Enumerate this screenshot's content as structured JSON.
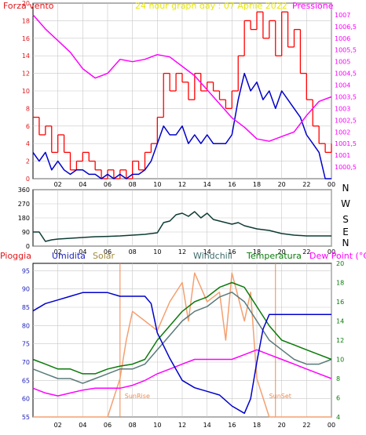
{
  "panel1": {
    "left_title": "Forza vento",
    "center_title": "24 hour graph day : 07 Aprile 2022",
    "right_title": "Pressione",
    "colors": {
      "left": "#e0161b",
      "right": "#ff00ff",
      "center": "#e8e800"
    }
  },
  "panel3": {
    "labels": [
      {
        "text": "Pioggia",
        "color": "#e0161b"
      },
      {
        "text": "Umidita",
        "color": "#1b1fb8"
      },
      {
        "text": "Solar",
        "color": "#a08a40"
      },
      {
        "text": "Windchill",
        "color": "#3a6a6a"
      },
      {
        "text": "Temperatura",
        "color": "#0a7a0a"
      },
      {
        "text": "Dew Point (°C)",
        "color": "#ff00ff"
      }
    ],
    "sunrise_label": "SunRise",
    "sunset_label": "SunSet",
    "sun_color": "#f08a4a"
  },
  "chart_data": [
    {
      "type": "line",
      "title": "24 hour graph day : 07 Aprile 2022",
      "ylabel_left": "Forza vento",
      "ylabel_right": "Pressione",
      "x_ticks": [
        "02",
        "04",
        "06",
        "08",
        "10",
        "12",
        "14",
        "16",
        "18",
        "20",
        "22",
        "00"
      ],
      "y_left_ticks": [
        "0",
        "2",
        "4",
        "6",
        "8",
        "10",
        "12",
        "14",
        "16",
        "18",
        "20"
      ],
      "y_right_ticks": [
        "1000,5",
        "1001",
        "1001,5",
        "1002",
        "1002,5",
        "1003",
        "1003,5",
        "1004",
        "1004,5",
        "1005",
        "1005,5",
        "1006",
        "1006,5",
        "1007"
      ],
      "ylim_left": [
        0,
        20
      ],
      "ylim_right": [
        1000,
        1007.5
      ],
      "series": [
        {
          "name": "Gust",
          "color": "#ff0000",
          "x": [
            0,
            0.5,
            1,
            1.5,
            2,
            2.5,
            3,
            3.5,
            4,
            4.5,
            5,
            5.5,
            6,
            6.5,
            7,
            7.5,
            8,
            8.5,
            9,
            9.5,
            10,
            10.5,
            11,
            11.5,
            12,
            12.5,
            13,
            13.5,
            14,
            14.5,
            15,
            15.5,
            16,
            16.5,
            17,
            17.5,
            18,
            18.5,
            19,
            19.5,
            20,
            20.5,
            21,
            21.5,
            22,
            22.5,
            23,
            23.5,
            24
          ],
          "y": [
            7,
            5,
            6,
            3,
            5,
            3,
            1,
            2,
            3,
            2,
            1,
            0,
            1,
            0,
            1,
            0,
            2,
            1,
            3,
            4,
            7,
            12,
            10,
            12,
            11,
            9,
            12,
            10,
            11,
            10,
            9,
            8,
            10,
            14,
            18,
            17,
            19,
            16,
            18,
            14,
            19,
            15,
            17,
            12,
            9,
            6,
            4,
            3,
            4
          ]
        },
        {
          "name": "Vento",
          "color": "#0000cc",
          "x": [
            0,
            0.5,
            1,
            1.5,
            2,
            2.5,
            3,
            3.5,
            4,
            4.5,
            5,
            5.5,
            6,
            6.5,
            7,
            7.5,
            8,
            8.5,
            9,
            9.5,
            10,
            10.5,
            11,
            11.5,
            12,
            12.5,
            13,
            13.5,
            14,
            14.5,
            15,
            15.5,
            16,
            16.5,
            17,
            17.5,
            18,
            18.5,
            19,
            19.5,
            20,
            20.5,
            21,
            21.5,
            22,
            22.5,
            23,
            23.5,
            24
          ],
          "y": [
            3,
            2,
            3,
            1,
            2,
            1,
            0.5,
            1,
            1,
            0.5,
            0.5,
            0,
            0.5,
            0,
            0.5,
            0,
            0.5,
            0.5,
            1,
            2,
            4,
            6,
            5,
            5,
            6,
            4,
            5,
            4,
            5,
            4,
            4,
            4,
            5,
            9,
            12,
            10,
            11,
            9,
            10,
            8,
            10,
            9,
            8,
            7,
            5,
            4,
            3,
            0,
            0
          ]
        },
        {
          "name": "Pressione",
          "color": "#ff00ff",
          "x": [
            0,
            1,
            2,
            3,
            4,
            5,
            6,
            7,
            8,
            9,
            10,
            11,
            12,
            13,
            14,
            15,
            16,
            17,
            18,
            19,
            20,
            21,
            22,
            23,
            24
          ],
          "y": [
            1007,
            1006.4,
            1005.9,
            1005.4,
            1004.7,
            1004.3,
            1004.5,
            1005.1,
            1005,
            1005.1,
            1005.3,
            1005.2,
            1004.8,
            1004.4,
            1003.8,
            1003.2,
            1002.6,
            1002.2,
            1001.7,
            1001.6,
            1001.8,
            1002,
            1002.7,
            1003.3,
            1003.5
          ]
        }
      ]
    },
    {
      "type": "line",
      "ylabel_right": "N W S E N",
      "x_ticks": [
        "02",
        "04",
        "06",
        "08",
        "10",
        "12",
        "14",
        "16",
        "18",
        "20",
        "22",
        "00"
      ],
      "y_ticks": [
        "0",
        "90",
        "180",
        "270",
        "360"
      ],
      "ylim": [
        0,
        360
      ],
      "y_right_labels": [
        "N",
        "W",
        "S",
        "E",
        "N"
      ],
      "series": [
        {
          "name": "Direzione",
          "color": "#0d3b34",
          "x": [
            0,
            0.5,
            1,
            1.5,
            2,
            3,
            4,
            5,
            6,
            7,
            8,
            9,
            10,
            10.5,
            11,
            11.5,
            12,
            12.5,
            13,
            13.5,
            14,
            14.5,
            15,
            15.5,
            16,
            16.5,
            17,
            18,
            19,
            20,
            21,
            22,
            23,
            24
          ],
          "y": [
            90,
            90,
            30,
            40,
            45,
            50,
            55,
            60,
            62,
            65,
            70,
            75,
            85,
            150,
            160,
            200,
            210,
            190,
            220,
            180,
            210,
            170,
            160,
            150,
            140,
            150,
            130,
            110,
            100,
            80,
            70,
            65,
            65,
            65
          ]
        }
      ]
    },
    {
      "type": "line",
      "labels_top": [
        "Pioggia",
        "Umidita",
        "Solar",
        "Windchill",
        "Temperatura",
        "Dew Point (°C)"
      ],
      "x_ticks": [
        "02",
        "04",
        "06",
        "08",
        "10",
        "12",
        "14",
        "16",
        "18",
        "20",
        "22",
        "00"
      ],
      "y_left_ticks": [
        "55",
        "60",
        "65",
        "70",
        "75",
        "80",
        "85",
        "90",
        "95"
      ],
      "y_right_ticks": [
        "4",
        "6",
        "8",
        "10",
        "12",
        "14",
        "16",
        "18",
        "20"
      ],
      "ylim_left": [
        55,
        97
      ],
      "ylim_right": [
        4,
        20
      ],
      "annotations": [
        "SunRise",
        "SunSet"
      ],
      "series": [
        {
          "name": "Umidita",
          "color": "#0000cc",
          "axis": "left",
          "x": [
            0,
            1,
            2,
            3,
            4,
            5,
            6,
            7,
            8,
            9,
            9.5,
            10,
            11,
            12,
            13,
            14,
            15,
            16,
            17,
            17.5,
            18,
            18.5,
            19,
            20,
            21,
            22,
            23,
            24
          ],
          "y": [
            84,
            86,
            87,
            88,
            89,
            89,
            89,
            88,
            88,
            88,
            86,
            78,
            71,
            65,
            63,
            62,
            61,
            58,
            56,
            60,
            70,
            79,
            83,
            83,
            83,
            83,
            83,
            83
          ]
        },
        {
          "name": "Solar",
          "color": "#f4a070",
          "axis": "right",
          "x": [
            0,
            6,
            7,
            7.5,
            8,
            9,
            10,
            11,
            12,
            12.5,
            13,
            14,
            15,
            15.5,
            16,
            17,
            17.5,
            18,
            19,
            19.5,
            24
          ],
          "y": [
            4,
            4,
            8,
            12,
            15,
            14,
            13,
            16,
            18,
            14,
            19,
            16,
            17,
            12,
            19,
            14,
            17,
            8,
            4,
            4,
            4
          ]
        },
        {
          "name": "Windchill",
          "color": "#5a7a7a",
          "axis": "right",
          "x": [
            0,
            1,
            2,
            3,
            4,
            5,
            6,
            7,
            8,
            9,
            10,
            11,
            12,
            13,
            14,
            15,
            16,
            17,
            18,
            19,
            20,
            21,
            22,
            23,
            24
          ],
          "y": [
            9,
            8.5,
            8,
            8,
            7.5,
            8,
            8.5,
            9,
            9,
            9.5,
            11,
            12.5,
            14,
            15,
            15.5,
            16.5,
            17,
            16,
            14,
            12,
            11,
            10,
            9.5,
            9.5,
            10
          ]
        },
        {
          "name": "Temperatura",
          "color": "#0a7a0a",
          "axis": "right",
          "x": [
            0,
            1,
            2,
            3,
            4,
            5,
            6,
            7,
            8,
            9,
            10,
            11,
            12,
            13,
            14,
            15,
            16,
            17,
            18,
            19,
            20,
            21,
            22,
            23,
            24
          ],
          "y": [
            10,
            9.5,
            9,
            9,
            8.5,
            8.5,
            9,
            9.3,
            9.5,
            10,
            12,
            13.5,
            15,
            16,
            16.5,
            17.5,
            18,
            17.5,
            15.5,
            13.5,
            12,
            11.5,
            11,
            10.5,
            10
          ]
        },
        {
          "name": "Dew Point",
          "color": "#ff00ff",
          "axis": "right",
          "x": [
            0,
            1,
            2,
            3,
            4,
            5,
            6,
            7,
            8,
            9,
            10,
            11,
            12,
            13,
            14,
            15,
            16,
            17,
            18,
            19,
            20,
            21,
            22,
            23,
            24
          ],
          "y": [
            7,
            6.5,
            6.2,
            6.5,
            6.8,
            7,
            7,
            7,
            7.3,
            7.8,
            8.5,
            9,
            9.5,
            10,
            10,
            10,
            10,
            10.5,
            11,
            10.5,
            10,
            9.5,
            9,
            8.5,
            8
          ]
        }
      ]
    }
  ]
}
